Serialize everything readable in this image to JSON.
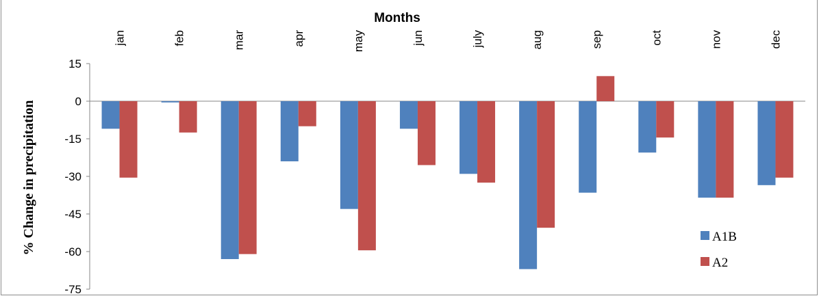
{
  "chart_data": {
    "type": "bar",
    "title": "",
    "xlabel": "Months",
    "ylabel": "% Change in  precipitation",
    "categories": [
      "jan",
      "feb",
      "mar",
      "apr",
      "may",
      "jun",
      "july",
      "aug",
      "sep",
      "oct",
      "nov",
      "dec"
    ],
    "series": [
      {
        "name": "A1B",
        "color": "#4f81bd",
        "values": [
          -11,
          -0.5,
          -63,
          -24,
          -43,
          -11,
          -29,
          -67,
          -36.5,
          -20.5,
          -38.5,
          -33.5
        ]
      },
      {
        "name": "A2",
        "color": "#c0504d",
        "values": [
          -30.5,
          -12.5,
          -61,
          -10,
          -59.5,
          -25.5,
          -32.5,
          -50.5,
          10,
          -14.5,
          -38.5,
          -30.5
        ]
      }
    ],
    "ylim": [
      -75,
      15
    ],
    "yticks": [
      "15",
      "0",
      "-15",
      "-30",
      "-45",
      "-60",
      "-75"
    ],
    "legend_position": "bottom-right",
    "grid": false
  }
}
